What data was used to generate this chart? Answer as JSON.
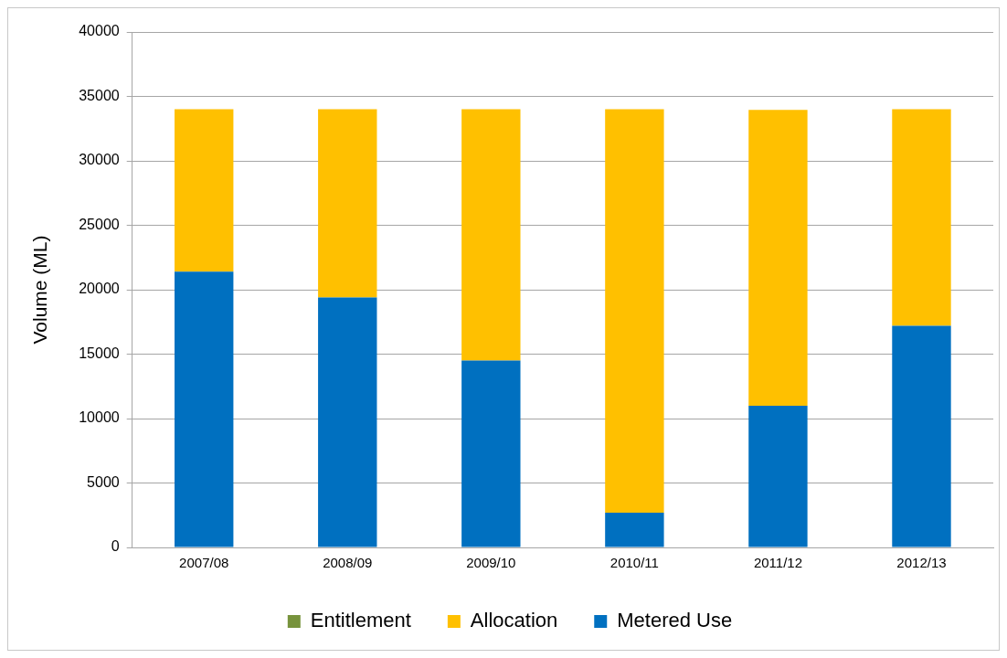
{
  "chart_data": {
    "type": "bar",
    "stacked": true,
    "ylabel": "Volume (ML)",
    "categories": [
      "2007/08",
      "2008/09",
      "2009/10",
      "2010/11",
      "2011/12",
      "2012/13"
    ],
    "series": [
      {
        "name": "Metered Use",
        "color": "#0070c0",
        "values": [
          21400,
          19400,
          14500,
          2700,
          11000,
          17200
        ]
      },
      {
        "name": "Allocation",
        "color": "#ffc000",
        "values": [
          12600,
          14600,
          19500,
          31300,
          22950,
          16800
        ]
      },
      {
        "name": "Entitlement",
        "color": "#77933c",
        "values": [
          null,
          null,
          null,
          null,
          null,
          null
        ]
      }
    ],
    "ylim": [
      0,
      40000
    ],
    "yticks": [
      0,
      5000,
      10000,
      15000,
      20000,
      25000,
      30000,
      35000,
      40000
    ],
    "grid": "y",
    "legend": "bottom"
  }
}
